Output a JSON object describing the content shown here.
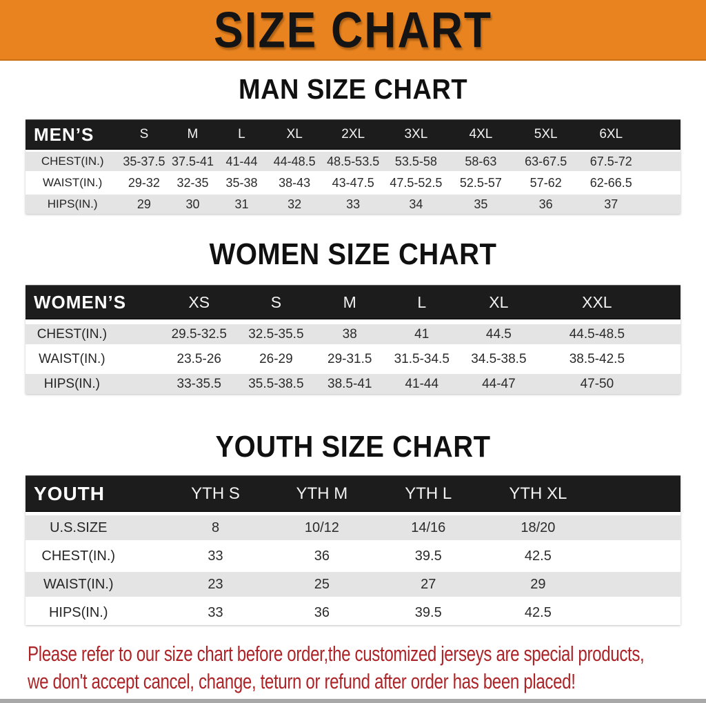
{
  "banner": {
    "title": "SIZE CHART"
  },
  "colors": {
    "banner_bg": "#E8831F",
    "table_header_bg": "#1C1C1C",
    "row_shaded": "#E4E4E4",
    "row_plain": "#FFFFFF",
    "disclaimer_text": "#AD2428"
  },
  "sections": [
    {
      "key": "mens",
      "heading": "MAN SIZE CHART",
      "table": {
        "header": [
          "MEN’S",
          "S",
          "M",
          "L",
          "XL",
          "2XL",
          "3XL",
          "4XL",
          "5XL",
          "6XL"
        ],
        "rows": [
          {
            "label": "CHEST(IN.)",
            "values": [
              "35-37.5",
              "37.5-41",
              "41-44",
              "44-48.5",
              "48.5-53.5",
              "53.5-58",
              "58-63",
              "63-67.5",
              "67.5-72"
            ]
          },
          {
            "label": "WAIST(IN.)",
            "values": [
              "29-32",
              "32-35",
              "35-38",
              "38-43",
              "43-47.5",
              "47.5-52.5",
              "52.5-57",
              "57-62",
              "62-66.5"
            ]
          },
          {
            "label": "HIPS(IN.)",
            "values": [
              "29",
              "30",
              "31",
              "32",
              "33",
              "34",
              "35",
              "36",
              "37"
            ]
          }
        ]
      }
    },
    {
      "key": "womens",
      "heading": "WOMEN SIZE CHART",
      "table": {
        "header": [
          "WOMEN’S",
          "XS",
          "S",
          "M",
          "L",
          "XL",
          "XXL"
        ],
        "rows": [
          {
            "label": "CHEST(IN.)",
            "values": [
              "29.5-32.5",
              "32.5-35.5",
              "38",
              "41",
              "44.5",
              "44.5-48.5"
            ]
          },
          {
            "label": "WAIST(IN.)",
            "values": [
              "23.5-26",
              "26-29",
              "29-31.5",
              "31.5-34.5",
              "34.5-38.5",
              "38.5-42.5"
            ]
          },
          {
            "label": "HIPS(IN.)",
            "values": [
              "33-35.5",
              "35.5-38.5",
              "38.5-41",
              "41-44",
              "44-47",
              "47-50"
            ]
          }
        ]
      }
    },
    {
      "key": "youth",
      "heading": "YOUTH SIZE CHART",
      "table": {
        "header": [
          "YOUTH",
          "YTH S",
          "YTH M",
          "YTH L",
          "YTH XL"
        ],
        "rows": [
          {
            "label": "U.S.SIZE",
            "values": [
              "8",
              "10/12",
              "14/16",
              "18/20"
            ]
          },
          {
            "label": "CHEST(IN.)",
            "values": [
              "33",
              "36",
              "39.5",
              "42.5"
            ]
          },
          {
            "label": "WAIST(IN.)",
            "values": [
              "23",
              "25",
              "27",
              "29"
            ]
          },
          {
            "label": "HIPS(IN.)",
            "values": [
              "33",
              "36",
              "39.5",
              "42.5"
            ]
          }
        ]
      }
    }
  ],
  "disclaimer": {
    "line1": "Please refer to our size chart before order,the customized jerseys are special products,",
    "line2": "we don't accept cancel, change, teturn or refund after order has been placed!"
  }
}
